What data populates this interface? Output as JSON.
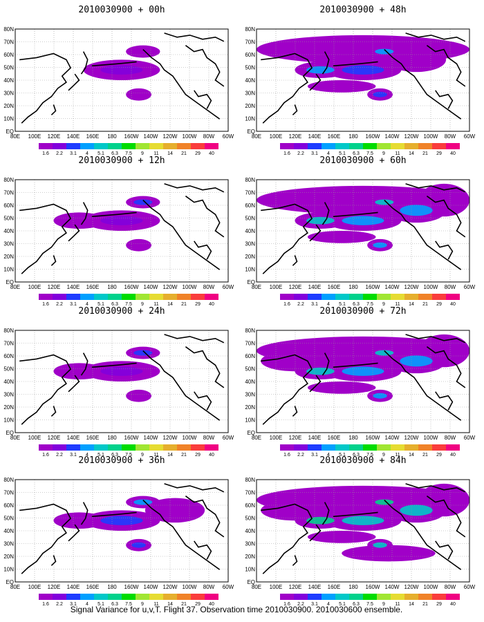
{
  "caption": "Signal Variance for u,v,T. Flight 37. Observation time 2010030900. 2010030600 ensemble.",
  "map": {
    "lon_range": [
      "80E",
      "60W"
    ],
    "lat_range": [
      "EQ",
      "80N"
    ],
    "lon_labels": [
      "80E",
      "100E",
      "120E",
      "140E",
      "160E",
      "180",
      "160W",
      "140W",
      "120W",
      "100W",
      "80W",
      "60W"
    ],
    "lat_labels": [
      "EQ",
      "10N",
      "20N",
      "30N",
      "40N",
      "50N",
      "60N",
      "70N",
      "80N"
    ],
    "gridlines": "dotted"
  },
  "colorbar": {
    "labels": [
      "1.6",
      "2.2",
      "3.1",
      "4",
      "5.1",
      "6.3",
      "7.5",
      "9",
      "11",
      "14",
      "21",
      "29",
      "40"
    ],
    "colors": [
      "#a000c8",
      "#8200dc",
      "#1e3cff",
      "#00a0ff",
      "#00c8c8",
      "#00d28c",
      "#00dc00",
      "#a0e632",
      "#e6dc32",
      "#e6af2d",
      "#f08228",
      "#fa3c3c",
      "#f00082"
    ]
  },
  "panels": [
    {
      "id": "p00",
      "title": "2010030900 + 00h",
      "level": 0
    },
    {
      "id": "p48",
      "title": "2010030900 + 48h",
      "level": 3
    },
    {
      "id": "p12",
      "title": "2010030900 + 12h",
      "level": 1
    },
    {
      "id": "p60",
      "title": "2010030900 + 60h",
      "level": 4
    },
    {
      "id": "p24",
      "title": "2010030900 + 24h",
      "level": 1
    },
    {
      "id": "p72",
      "title": "2010030900 + 72h",
      "level": 5
    },
    {
      "id": "p36",
      "title": "2010030900 + 36h",
      "level": 2
    },
    {
      "id": "p84",
      "title": "2010030900 + 84h",
      "level": 6
    }
  ]
}
